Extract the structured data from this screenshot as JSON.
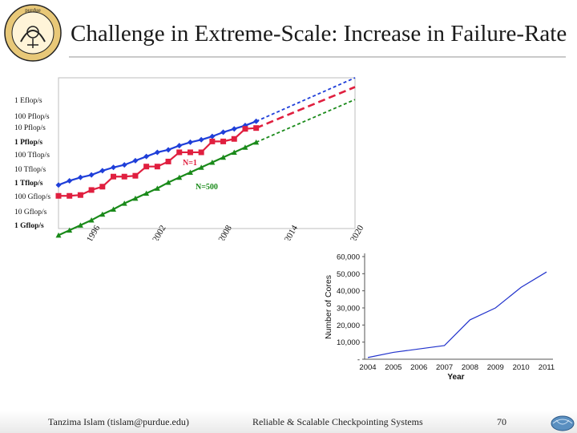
{
  "slide": {
    "title": "Challenge in Extreme-Scale: Increase in Failure-Rate",
    "logo_text": "purdue university",
    "footer_left": "Tanzima Islam (tislam@purdue.edu)",
    "footer_center": "Reliable & Scalable Checkpointing Systems",
    "page_number": "70"
  },
  "chart_data": [
    {
      "type": "line",
      "x_ticks": [
        "1996",
        "2002",
        "2008",
        "2014",
        "2020"
      ],
      "y_ticks": [
        "1 Eflop/s",
        "100 Pflop/s",
        "10 Pflop/s",
        "1 Pflop/s",
        "100 Tflop/s",
        "10 Tflop/s",
        "1 Tflop/s",
        "100 Gflop/s",
        "10 Gflop/s",
        "1 Gflop/s"
      ],
      "y_scale": "log",
      "grid": false,
      "annotations": [
        "N=1",
        "N=500"
      ],
      "series": [
        {
          "color": "#1f3fd9",
          "marker": "diamond",
          "x": [
            1993,
            1994,
            1995,
            1996,
            1997,
            1998,
            1999,
            2000,
            2001,
            2002,
            2003,
            2004,
            2005,
            2006,
            2007,
            2008,
            2009,
            2010,
            2011
          ],
          "y_log10_gflops": [
            2.6,
            2.85,
            3.05,
            3.2,
            3.45,
            3.65,
            3.8,
            4.05,
            4.3,
            4.55,
            4.7,
            4.95,
            5.15,
            5.3,
            5.5,
            5.75,
            5.95,
            6.15,
            6.4
          ],
          "projection_to": [
            2020,
            9.0
          ]
        },
        {
          "color": "#e01f3f",
          "marker": "square",
          "x": [
            1993,
            1994,
            1995,
            1996,
            1997,
            1998,
            1999,
            2000,
            2001,
            2002,
            2003,
            2004,
            2005,
            2006,
            2007,
            2008,
            2009,
            2010,
            2011
          ],
          "y_log10_gflops": [
            1.95,
            1.95,
            2.0,
            2.3,
            2.5,
            3.1,
            3.1,
            3.15,
            3.7,
            3.7,
            4.0,
            4.55,
            4.55,
            4.55,
            5.2,
            5.2,
            5.35,
            5.95,
            6.0
          ],
          "projection_to": [
            2020,
            8.45
          ]
        },
        {
          "color": "#1a8a1a",
          "marker": "triangle",
          "x": [
            1993,
            1994,
            1995,
            1996,
            1997,
            1998,
            1999,
            2000,
            2001,
            2002,
            2003,
            2004,
            2005,
            2006,
            2007,
            2008,
            2009,
            2010,
            2011
          ],
          "y_log10_gflops": [
            -0.4,
            -0.1,
            0.2,
            0.5,
            0.85,
            1.15,
            1.5,
            1.8,
            2.1,
            2.4,
            2.75,
            3.05,
            3.35,
            3.65,
            3.95,
            4.25,
            4.55,
            4.85,
            5.15
          ],
          "projection_to": [
            2020,
            7.7
          ]
        }
      ]
    },
    {
      "type": "line",
      "xlabel": "Year",
      "ylabel": "Number of Cores",
      "categories": [
        "2004",
        "2005",
        "2006",
        "2007",
        "2008",
        "2009",
        "2010",
        "2011"
      ],
      "y_tick_labels": [
        "-",
        "10,000",
        "20,000",
        "30,000",
        "40,000",
        "50,000",
        "60,000"
      ],
      "ylim": [
        0,
        60000
      ],
      "grid": false,
      "series": [
        {
          "color": "#2233cc",
          "values": [
            1000,
            4000,
            6000,
            8000,
            23000,
            30000,
            42000,
            51000
          ]
        }
      ]
    }
  ]
}
